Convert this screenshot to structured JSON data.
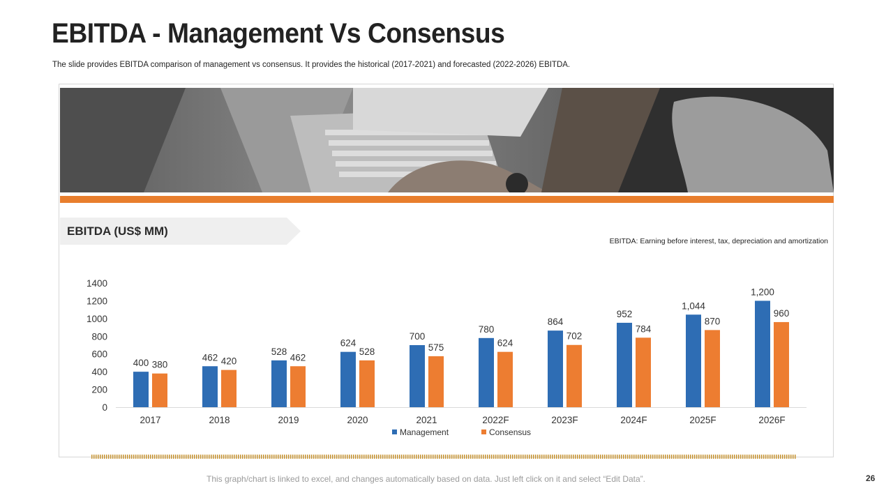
{
  "slide": {
    "title": "EBITDA - Management Vs Consensus",
    "subtitle": "The slide provides EBITDA comparison of management  vs consensus. It provides the historical (2017-2021) and forecasted (2022-2026) EBITDA.",
    "section_label": "EBITDA (US$ MM)",
    "definition_note": "EBITDA: Earning before interest, tax, depreciation and amortization",
    "footer_note": "This graph/chart is linked to excel, and changes automatically based on data. Just left click on it and select “Edit Data”.",
    "page_number": "26"
  },
  "colors": {
    "accent_orange": "#e87e2d",
    "management_blue": "#2e6db4",
    "consensus_orange": "#ed7d31"
  },
  "chart_data": {
    "type": "bar",
    "title": "EBITDA (US$ MM)",
    "xlabel": "",
    "ylabel": "",
    "categories": [
      "2017",
      "2018",
      "2019",
      "2020",
      "2021",
      "2022F",
      "2023F",
      "2024F",
      "2025F",
      "2026F"
    ],
    "series": [
      {
        "name": "Management",
        "values": [
          400,
          462,
          528,
          624,
          700,
          780,
          864,
          952,
          1044,
          1200
        ],
        "labels": [
          "400",
          "462",
          "528",
          "624",
          "700",
          "780",
          "864",
          "952",
          "1,044",
          "1,200"
        ]
      },
      {
        "name": "Consensus",
        "values": [
          380,
          420,
          462,
          528,
          575,
          624,
          702,
          784,
          870,
          960
        ],
        "labels": [
          "380",
          "420",
          "462",
          "528",
          "575",
          "624",
          "702",
          "784",
          "870",
          "960"
        ]
      }
    ],
    "yticks": [
      "0",
      "200",
      "400",
      "600",
      "800",
      "1000",
      "1200",
      "1400"
    ],
    "ylim": [
      0,
      1400
    ],
    "legend": "bottom-center",
    "grid": false
  }
}
